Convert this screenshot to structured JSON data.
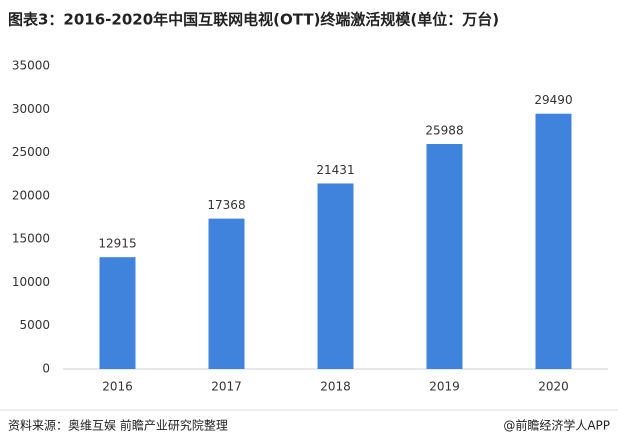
{
  "chart_data": {
    "type": "bar",
    "title": "图表3：2016-2020年中国互联网电视(OTT)终端激活规模(单位：万台)",
    "categories": [
      "2016",
      "2017",
      "2018",
      "2019",
      "2020"
    ],
    "values": [
      12915,
      17368,
      21431,
      25988,
      29490
    ],
    "color": "#3f83dc",
    "ylim": [
      0,
      35000
    ],
    "yticks": [
      0,
      5000,
      10000,
      15000,
      20000,
      25000,
      30000,
      35000
    ],
    "grid": false,
    "source": "资料来源：奥维互娱  前瞻产业研究院整理",
    "credit": "@前瞻经济学人APP"
  }
}
